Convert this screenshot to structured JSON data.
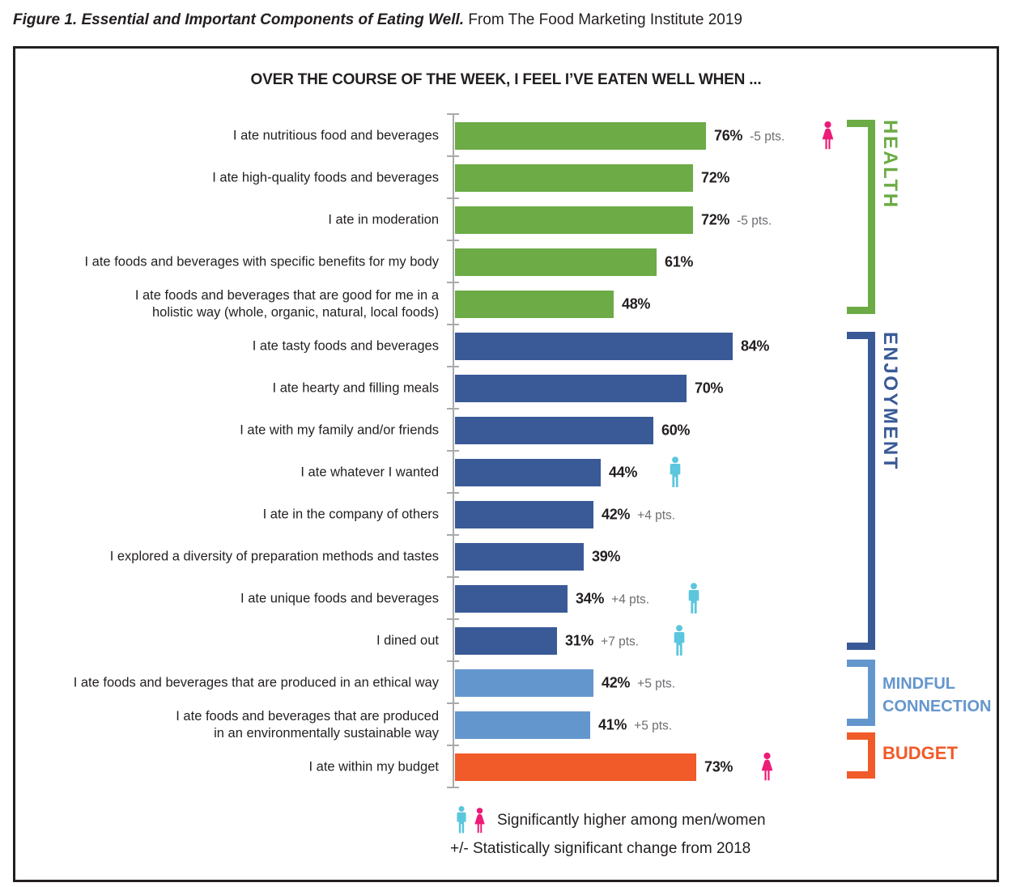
{
  "caption": {
    "title": "Figure 1. Essential and Important Components of Eating Well.",
    "source": "From The Food Marketing Institute 2019"
  },
  "colors": {
    "green": "#6CAB45",
    "dark_blue": "#3A5A97",
    "light_blue": "#6496CE",
    "orange": "#F15A29",
    "men_teal": "#5BC6DD",
    "women_pink": "#EC1C77",
    "axis_gray": "#A8AAAD",
    "change_gray": "#6D6E71",
    "text_dark": "#231F20"
  },
  "legend": {
    "line1": "Significantly higher among men/women",
    "line2": "+/- Statistically significant change from 2018",
    "man_icon": "man-pictogram",
    "woman_icon": "woman-pictogram"
  },
  "chart_data": {
    "type": "bar",
    "orientation": "horizontal",
    "title": "OVER THE COURSE OF THE WEEK, I FEEL I’VE EATEN WELL WHEN ...",
    "unit": "%",
    "xlim": [
      0,
      100
    ],
    "categories": [
      "I ate nutritious food and beverages",
      "I ate high-quality foods and beverages",
      "I ate in moderation",
      "I ate foods and beverages with specific benefits for my body",
      "I ate foods and beverages that are good for me in a\nholistic way (whole, organic, natural, local foods)",
      "I ate tasty foods and beverages",
      "I ate hearty and filling meals",
      "I ate with my family and/or friends",
      "I ate whatever I wanted",
      "I ate in the company of others",
      "I explored a diversity of preparation methods and tastes",
      "I ate unique foods and beverages",
      "I dined out",
      "I ate foods and beverages that are produced in an ethical way",
      "I ate foods and beverages that are produced\nin an environmentally sustainable way",
      "I ate within my budget"
    ],
    "values": [
      76,
      72,
      72,
      61,
      48,
      84,
      70,
      60,
      44,
      42,
      39,
      34,
      31,
      42,
      41,
      73
    ],
    "changes": [
      "-5 pts.",
      null,
      "-5 pts.",
      null,
      null,
      null,
      null,
      null,
      null,
      "+4 pts.",
      null,
      "+4 pts.",
      "+7 pts.",
      "+5 pts.",
      "+5 pts.",
      null
    ],
    "significantly_higher_among": [
      "women",
      null,
      null,
      null,
      null,
      null,
      null,
      null,
      "men",
      null,
      null,
      "men",
      "men",
      null,
      null,
      "women"
    ],
    "group_index": [
      0,
      0,
      0,
      0,
      0,
      1,
      1,
      1,
      1,
      1,
      1,
      1,
      1,
      2,
      2,
      3
    ],
    "groups": [
      {
        "label": "HEALTH",
        "color": "#6CAB45"
      },
      {
        "label": "ENJOYMENT",
        "color": "#3A5A97"
      },
      {
        "label": "MINDFUL\nCONNECTION",
        "color": "#6496CE"
      },
      {
        "label": "BUDGET",
        "color": "#F15A29"
      }
    ]
  }
}
